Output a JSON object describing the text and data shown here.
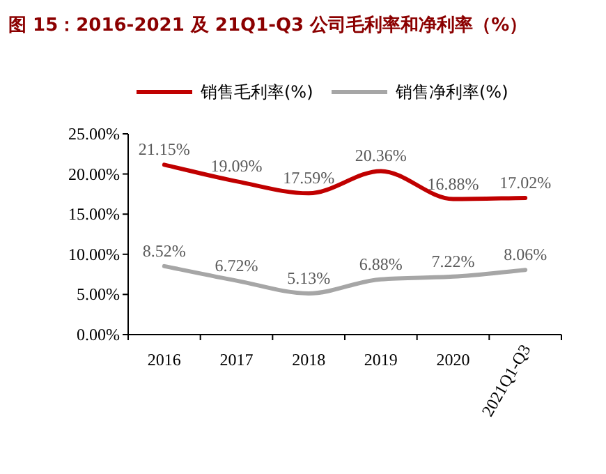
{
  "chart_data": {
    "type": "line",
    "title": "图 15：2016-2021 及 21Q1-Q3 公司毛利率和净利率（%）",
    "categories": [
      "2016",
      "2017",
      "2018",
      "2019",
      "2020",
      "2021Q1-Q3"
    ],
    "series": [
      {
        "name": "销售毛利率(%)",
        "color": "#c00000",
        "values": [
          21.15,
          19.09,
          17.59,
          20.36,
          16.88,
          17.02
        ],
        "value_labels": [
          "21.15%",
          "19.09%",
          "17.59%",
          "20.36%",
          "16.88%",
          "17.02%"
        ]
      },
      {
        "name": "销售净利率(%)",
        "color": "#a6a6a6",
        "values": [
          8.52,
          6.72,
          5.13,
          6.88,
          7.22,
          8.06
        ],
        "value_labels": [
          "8.52%",
          "6.72%",
          "5.13%",
          "6.88%",
          "7.22%",
          "8.06%"
        ]
      }
    ],
    "ylim": [
      0,
      25
    ],
    "yticks": [
      {
        "value": 0,
        "label": "0.00%"
      },
      {
        "value": 5,
        "label": "5.00%"
      },
      {
        "value": 10,
        "label": "10.00%"
      },
      {
        "value": 15,
        "label": "15.00%"
      },
      {
        "value": 20,
        "label": "20.00%"
      },
      {
        "value": 25,
        "label": "25.00%"
      }
    ],
    "legend": "top",
    "marker": "none",
    "line_style": "solid",
    "grid": false
  }
}
